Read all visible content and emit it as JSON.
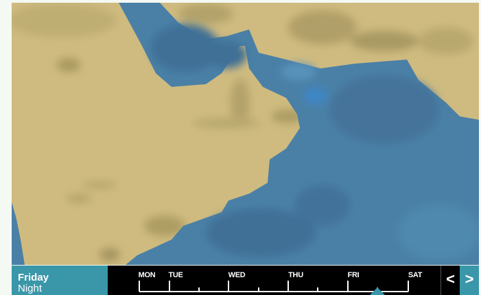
{
  "colors": {
    "sea": "#4a80a6",
    "land": "#cfbb7f",
    "panel": "#3a97a9",
    "timeline": "#000000"
  },
  "forecast": {
    "day": "Friday",
    "period": "Night"
  },
  "timeline": {
    "days": [
      "MON",
      "TUE",
      "WED",
      "THU",
      "FRI",
      "SAT"
    ],
    "selected_position": "FRI night"
  },
  "nav": {
    "prev_icon": "chevron-left-icon",
    "prev_label": "<",
    "next_icon": "chevron-right-icon",
    "next_label": ">"
  }
}
